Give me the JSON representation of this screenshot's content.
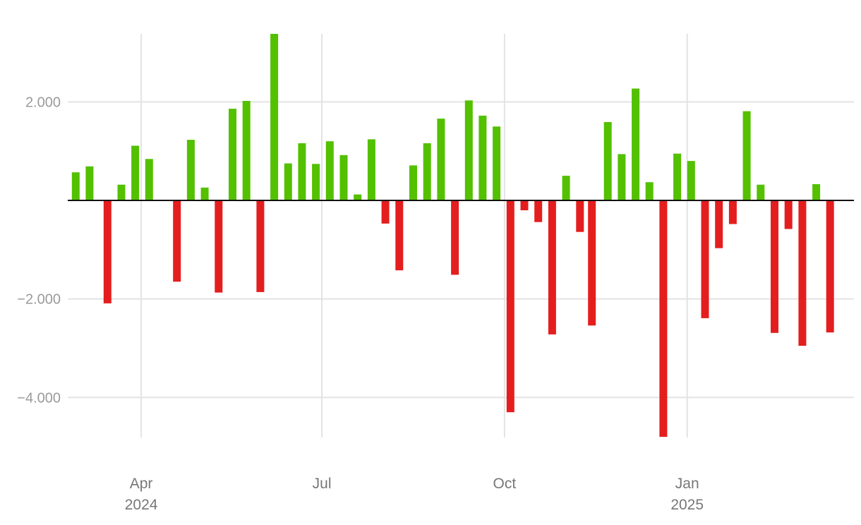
{
  "chart_data": {
    "type": "bar",
    "title": "",
    "xlabel": "",
    "ylabel": "",
    "grid": true,
    "legend": "none",
    "ylim": [
      -4800,
      3380
    ],
    "xlim": [
      "2024-02-24",
      "2025-03-26"
    ],
    "colors": {
      "positive": "#53c000",
      "negative": "#e41e1e",
      "grid": "#e3e3e3",
      "zero_line": "#111111"
    },
    "y_ticks": [
      {
        "value": 2000,
        "label": "2.000"
      },
      {
        "value": -2000,
        "label": "−2.000"
      },
      {
        "value": -4000,
        "label": "−4.000"
      }
    ],
    "x_ticks": [
      {
        "date": "2024-04-01",
        "label": "Apr",
        "sublabel": "2024"
      },
      {
        "date": "2024-07-01",
        "label": "Jul",
        "sublabel": ""
      },
      {
        "date": "2024-10-01",
        "label": "Oct",
        "sublabel": ""
      },
      {
        "date": "2025-01-01",
        "label": "Jan",
        "sublabel": "2025"
      }
    ],
    "x": [
      "2024-02-28",
      "2024-03-06",
      "2024-03-15",
      "2024-03-22",
      "2024-03-29",
      "2024-04-05",
      "2024-04-19",
      "2024-04-26",
      "2024-05-03",
      "2024-05-10",
      "2024-05-17",
      "2024-05-24",
      "2024-05-31",
      "2024-06-07",
      "2024-06-14",
      "2024-06-21",
      "2024-06-28",
      "2024-07-05",
      "2024-07-12",
      "2024-07-19",
      "2024-07-26",
      "2024-08-02",
      "2024-08-09",
      "2024-08-16",
      "2024-08-23",
      "2024-08-30",
      "2024-09-06",
      "2024-09-13",
      "2024-09-20",
      "2024-09-27",
      "2024-10-04",
      "2024-10-11",
      "2024-10-18",
      "2024-10-25",
      "2024-11-01",
      "2024-11-08",
      "2024-11-14",
      "2024-11-22",
      "2024-11-29",
      "2024-12-06",
      "2024-12-13",
      "2024-12-20",
      "2024-12-27",
      "2025-01-03",
      "2025-01-10",
      "2025-01-17",
      "2025-01-24",
      "2025-01-31",
      "2025-02-07",
      "2025-02-14",
      "2025-02-21",
      "2025-02-28",
      "2025-03-07",
      "2025-03-14",
      "2025-03-19"
    ],
    "values": [
      570,
      690,
      -2090,
      320,
      1110,
      840,
      -1650,
      1230,
      260,
      -1870,
      1860,
      2020,
      -1860,
      3380,
      750,
      1160,
      740,
      1200,
      920,
      120,
      1240,
      -470,
      -1420,
      710,
      1160,
      1660,
      -1510,
      2030,
      1720,
      1500,
      -4300,
      -200,
      -440,
      -2720,
      500,
      -640,
      -2540,
      1590,
      940,
      2270,
      370,
      -4800,
      950,
      800,
      -2390,
      -970,
      -480,
      1810,
      320,
      -2690,
      -580,
      -2950,
      330,
      -2680,
      0
    ]
  }
}
